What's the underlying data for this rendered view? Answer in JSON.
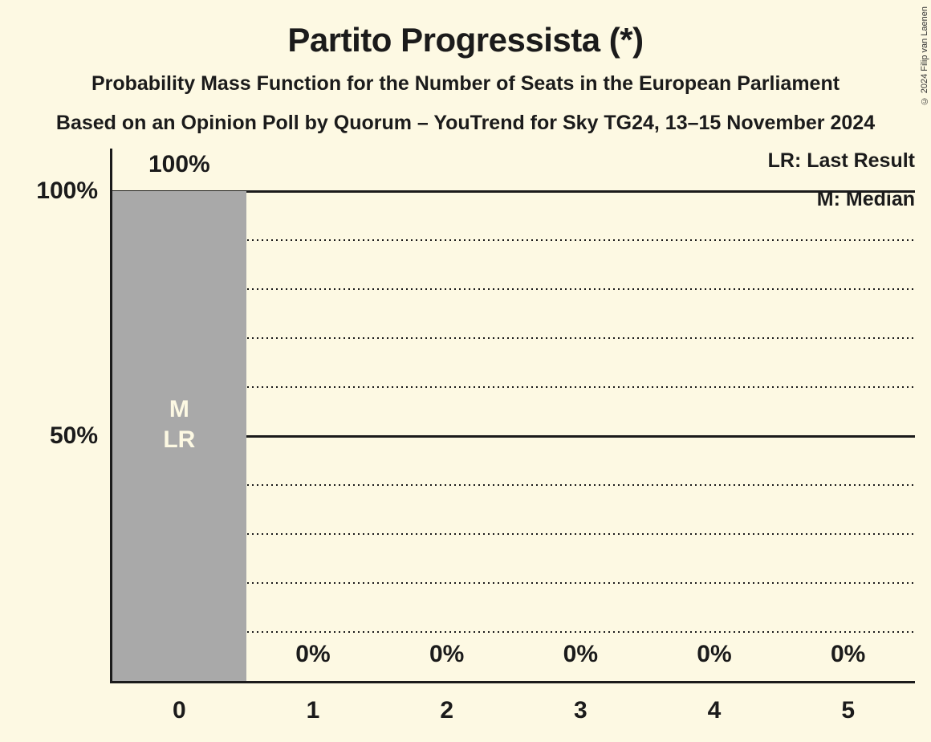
{
  "copyright": "© 2024 Filip van Laenen",
  "legend": {
    "lr": "LR: Last Result",
    "m": "M: Median"
  },
  "colors": {
    "background": "#FDF9E3",
    "bar": "#A9A9A9",
    "text": "#1b1b1b",
    "bar_annotation_text": "#FDF9E3"
  },
  "chart_data": {
    "type": "bar",
    "title": "Partito Progressista (*)",
    "subtitle": "Probability Mass Function for the Number of Seats in the European Parliament",
    "source_line": "Based on an Opinion Poll by Quorum – YouTrend for Sky TG24, 13–15 November 2024",
    "categories": [
      "0",
      "1",
      "2",
      "3",
      "4",
      "5"
    ],
    "values": [
      100,
      0,
      0,
      0,
      0,
      0
    ],
    "value_labels": [
      "100%",
      "0%",
      "0%",
      "0%",
      "0%",
      "0%"
    ],
    "bar_annotations": [
      [
        "M",
        "LR"
      ],
      [],
      [],
      [],
      [],
      []
    ],
    "y_ticks": [
      {
        "value": 100,
        "label": "100%"
      },
      {
        "value": 50,
        "label": "50%"
      }
    ],
    "solid_gridlines": [
      100,
      50
    ],
    "dotted_gridlines": [
      90,
      80,
      70,
      60,
      40,
      30,
      20,
      10
    ],
    "ylim": [
      0,
      100
    ],
    "grid": "horizontal",
    "legend_entries": [
      "LR: Last Result",
      "M: Median"
    ],
    "median_category": "0",
    "last_result_category": "0"
  }
}
